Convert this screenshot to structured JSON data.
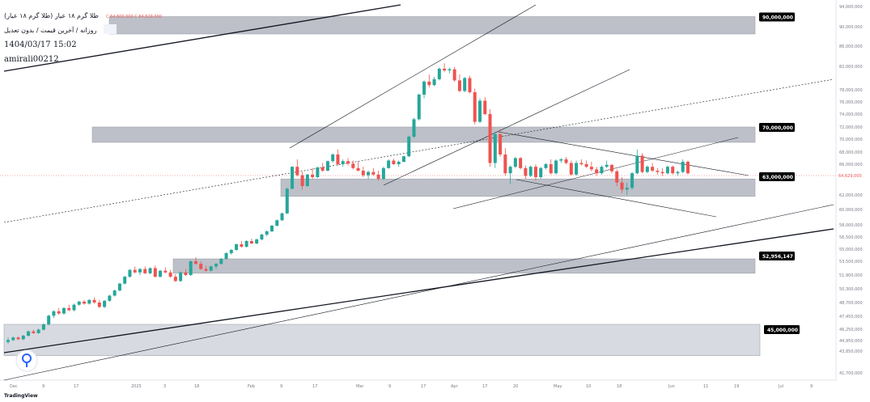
{
  "legend": {
    "title": "طلا گرم ۱۸ عیار (طلا گرم ۱۸ عیار)",
    "ohlc": "C 64,600,000   C 64,629,000",
    "subtitle": "روزانه / آخرین قیمت / بدون تعدیل",
    "datetime": "1404/03/17 15:02",
    "user": "amirali00212"
  },
  "watermark": "TradingView",
  "colors": {
    "up": "#26a69a",
    "down": "#ef5350",
    "zone": "#b2b5be",
    "zone_light": "#d1d4dc",
    "label_bg": "#000000"
  },
  "chart_data": {
    "type": "candlestick",
    "title": "",
    "ylim": [
      41000000,
      94000000
    ],
    "y_ticks": [
      "94,000,000",
      "90,000,000",
      "86,000,000",
      "82,000,000",
      "78,000,000",
      "76,000,000",
      "74,000,000",
      "72,000,000",
      "70,000,000",
      "68,000,000",
      "66,000,000",
      "64,000,000",
      "62,000,000",
      "60,000,000",
      "58,000,000",
      "56,500,000",
      "55,000,000",
      "53,500,000",
      "51,900,000",
      "50,300,000",
      "48,700,000",
      "47,450,000",
      "46,250,000",
      "44,950,000",
      "43,850,000",
      "41,700,000"
    ],
    "x_ticks": [
      "Dec",
      "9",
      "17",
      "2025",
      "3",
      "18",
      "Feb",
      "9",
      "17",
      "Mar",
      "9",
      "17",
      "Apr",
      "17",
      "20",
      "May",
      "10",
      "18",
      "Jun",
      "11",
      "19",
      "Jul",
      "9"
    ],
    "last_price_label": "64,629,000",
    "zones": [
      {
        "label": "90,000,000",
        "top": 92000000,
        "bottom": 88500000
      },
      {
        "label": "70,000,000",
        "top": 72000000,
        "bottom": 69500000
      },
      {
        "label": "63,000,000",
        "top": 63800000,
        "bottom": 61800000
      },
      {
        "label": "52,956,147",
        "top": 53800000,
        "bottom": 52100000
      },
      {
        "label": "45,000,000",
        "top": 46700000,
        "bottom": 43400000
      }
    ],
    "candles": [
      [
        44.8,
        45.3,
        44.6,
        45.0
      ],
      [
        45.0,
        45.4,
        44.9,
        45.3
      ],
      [
        45.3,
        45.4,
        45.0,
        45.1
      ],
      [
        45.1,
        45.6,
        45.0,
        45.5
      ],
      [
        45.5,
        46.1,
        45.4,
        46.0
      ],
      [
        46.0,
        46.2,
        45.7,
        45.8
      ],
      [
        45.8,
        46.3,
        45.7,
        46.2
      ],
      [
        46.2,
        46.8,
        46.1,
        46.7
      ],
      [
        46.7,
        47.6,
        46.6,
        47.5
      ],
      [
        47.5,
        48.0,
        47.3,
        47.9
      ],
      [
        47.9,
        48.2,
        47.6,
        47.7
      ],
      [
        47.7,
        48.3,
        47.6,
        48.2
      ],
      [
        48.2,
        48.5,
        47.9,
        48.0
      ],
      [
        48.0,
        48.6,
        47.9,
        48.5
      ],
      [
        48.5,
        48.9,
        48.4,
        48.8
      ],
      [
        48.8,
        49.0,
        48.5,
        48.6
      ],
      [
        48.6,
        49.1,
        48.5,
        49.0
      ],
      [
        49.0,
        49.3,
        48.6,
        48.7
      ],
      [
        48.7,
        49.0,
        48.2,
        48.3
      ],
      [
        48.3,
        49.0,
        48.2,
        48.9
      ],
      [
        48.9,
        49.6,
        48.8,
        49.5
      ],
      [
        49.5,
        50.2,
        49.4,
        50.1
      ],
      [
        50.1,
        51.0,
        50.0,
        50.9
      ],
      [
        50.9,
        51.8,
        50.8,
        51.7
      ],
      [
        51.7,
        52.6,
        51.6,
        52.5
      ],
      [
        52.5,
        52.9,
        52.1,
        52.2
      ],
      [
        52.2,
        52.7,
        51.9,
        52.6
      ],
      [
        52.6,
        52.9,
        52.0,
        52.1
      ],
      [
        52.1,
        52.8,
        52.0,
        52.7
      ],
      [
        52.7,
        53.0,
        51.6,
        51.7
      ],
      [
        51.7,
        52.5,
        51.6,
        52.4
      ],
      [
        52.4,
        52.8,
        52.1,
        52.2
      ],
      [
        52.2,
        52.5,
        51.6,
        51.7
      ],
      [
        51.7,
        52.0,
        51.1,
        51.2
      ],
      [
        51.2,
        52.3,
        51.1,
        52.2
      ],
      [
        52.2,
        52.6,
        51.8,
        51.9
      ],
      [
        51.9,
        53.6,
        51.8,
        53.5
      ],
      [
        53.5,
        54.0,
        53.1,
        53.2
      ],
      [
        53.2,
        53.5,
        52.5,
        52.6
      ],
      [
        52.6,
        53.0,
        52.3,
        52.4
      ],
      [
        52.4,
        53.0,
        52.3,
        52.9
      ],
      [
        52.9,
        53.3,
        52.6,
        53.2
      ],
      [
        53.2,
        53.9,
        53.1,
        53.8
      ],
      [
        53.8,
        54.6,
        53.7,
        54.5
      ],
      [
        54.5,
        55.0,
        54.3,
        54.9
      ],
      [
        54.9,
        55.7,
        54.8,
        55.6
      ],
      [
        55.6,
        56.0,
        55.2,
        55.3
      ],
      [
        55.3,
        56.1,
        55.2,
        56.0
      ],
      [
        56.0,
        56.3,
        55.6,
        55.7
      ],
      [
        55.7,
        56.3,
        55.6,
        56.2
      ],
      [
        56.2,
        56.9,
        56.1,
        56.8
      ],
      [
        56.8,
        57.3,
        56.6,
        57.2
      ],
      [
        57.2,
        58.0,
        57.1,
        57.9
      ],
      [
        57.9,
        58.7,
        57.8,
        58.6
      ],
      [
        58.6,
        59.6,
        58.5,
        59.5
      ],
      [
        59.5,
        62.8,
        59.4,
        62.7
      ],
      [
        62.7,
        65.7,
        62.6,
        65.6
      ],
      [
        65.6,
        66.8,
        64.1,
        64.3
      ],
      [
        64.3,
        64.8,
        62.6,
        63.0
      ],
      [
        63.0,
        64.5,
        62.9,
        64.4
      ],
      [
        64.4,
        65.4,
        63.8,
        64.0
      ],
      [
        64.0,
        65.6,
        63.9,
        65.5
      ],
      [
        65.5,
        66.2,
        64.8,
        65.0
      ],
      [
        65.0,
        66.6,
        64.9,
        66.5
      ],
      [
        66.5,
        67.8,
        66.3,
        67.6
      ],
      [
        67.6,
        68.4,
        65.8,
        66.0
      ],
      [
        66.0,
        66.8,
        65.6,
        66.5
      ],
      [
        66.5,
        67.0,
        65.8,
        66.1
      ],
      [
        66.1,
        66.6,
        65.2,
        65.4
      ],
      [
        65.4,
        66.4,
        64.9,
        65.0
      ],
      [
        65.0,
        65.6,
        64.0,
        64.3
      ],
      [
        64.3,
        65.0,
        63.8,
        64.8
      ],
      [
        64.8,
        65.4,
        64.2,
        64.4
      ],
      [
        64.4,
        65.0,
        63.6,
        63.8
      ],
      [
        63.8,
        65.6,
        63.7,
        65.4
      ],
      [
        65.4,
        66.8,
        65.3,
        66.6
      ],
      [
        66.6,
        66.9,
        65.9,
        66.0
      ],
      [
        66.0,
        66.6,
        65.6,
        66.4
      ],
      [
        66.4,
        67.4,
        66.3,
        67.3
      ],
      [
        67.3,
        70.6,
        67.2,
        70.4
      ],
      [
        70.4,
        73.4,
        70.2,
        73.2
      ],
      [
        73.2,
        77.4,
        73.0,
        77.2
      ],
      [
        77.2,
        79.6,
        76.6,
        79.4
      ],
      [
        79.4,
        80.6,
        78.4,
        78.8
      ],
      [
        78.8,
        80.2,
        78.6,
        79.8
      ],
      [
        79.8,
        81.8,
        79.6,
        81.6
      ],
      [
        81.6,
        82.6,
        81.0,
        81.3
      ],
      [
        81.3,
        81.8,
        80.8,
        81.5
      ],
      [
        81.5,
        81.9,
        79.4,
        79.6
      ],
      [
        79.6,
        80.6,
        77.6,
        77.8
      ],
      [
        77.8,
        80.2,
        77.6,
        80.0
      ],
      [
        80.0,
        80.4,
        77.4,
        77.6
      ],
      [
        77.6,
        78.2,
        72.4,
        72.8
      ],
      [
        72.8,
        76.6,
        72.6,
        76.2
      ],
      [
        76.2,
        76.8,
        73.8,
        74.0
      ],
      [
        74.0,
        74.8,
        65.6,
        66.2
      ],
      [
        66.2,
        71.2,
        65.4,
        70.8
      ],
      [
        70.8,
        71.6,
        67.2,
        67.6
      ],
      [
        67.6,
        68.6,
        64.2,
        64.6
      ],
      [
        64.6,
        65.8,
        63.2,
        65.6
      ],
      [
        65.6,
        67.2,
        65.4,
        67.0
      ],
      [
        67.0,
        67.2,
        65.2,
        65.4
      ],
      [
        65.4,
        65.8,
        63.8,
        64.2
      ],
      [
        64.2,
        65.8,
        64.0,
        65.6
      ],
      [
        65.6,
        66.0,
        63.6,
        64.0
      ],
      [
        64.0,
        65.6,
        63.8,
        65.4
      ],
      [
        65.4,
        66.2,
        65.2,
        66.0
      ],
      [
        66.0,
        66.8,
        64.4,
        64.6
      ],
      [
        64.6,
        66.8,
        64.4,
        66.6
      ],
      [
        66.6,
        67.0,
        66.2,
        66.8
      ],
      [
        66.8,
        67.2,
        66.0,
        66.2
      ],
      [
        66.2,
        66.6,
        64.2,
        64.4
      ],
      [
        64.4,
        66.6,
        64.2,
        66.2
      ],
      [
        66.2,
        66.8,
        65.8,
        66.0
      ],
      [
        66.0,
        66.6,
        65.4,
        65.6
      ],
      [
        65.6,
        66.4,
        64.9,
        65.2
      ],
      [
        65.2,
        65.6,
        64.2,
        64.6
      ],
      [
        64.6,
        65.8,
        64.4,
        65.6
      ],
      [
        65.6,
        66.6,
        65.4,
        65.9
      ],
      [
        65.9,
        66.0,
        64.6,
        64.9
      ],
      [
        64.9,
        65.2,
        63.0,
        63.4
      ],
      [
        63.4,
        64.0,
        62.2,
        62.6
      ],
      [
        62.6,
        63.4,
        62.0,
        62.8
      ],
      [
        62.8,
        64.8,
        62.6,
        64.6
      ],
      [
        64.6,
        68.4,
        64.4,
        67.4
      ],
      [
        67.4,
        67.8,
        64.6,
        64.8
      ],
      [
        64.8,
        65.8,
        64.6,
        65.6
      ],
      [
        65.6,
        66.2,
        64.8,
        65.0
      ],
      [
        65.0,
        65.4,
        64.4,
        64.8
      ],
      [
        64.8,
        65.4,
        64.2,
        64.6
      ],
      [
        64.6,
        65.8,
        64.4,
        65.6
      ],
      [
        65.6,
        65.8,
        64.4,
        64.6
      ],
      [
        64.6,
        65.0,
        64.2,
        64.8
      ],
      [
        64.8,
        66.8,
        64.6,
        66.4
      ],
      [
        66.4,
        66.6,
        64.4,
        64.6
      ]
    ]
  }
}
